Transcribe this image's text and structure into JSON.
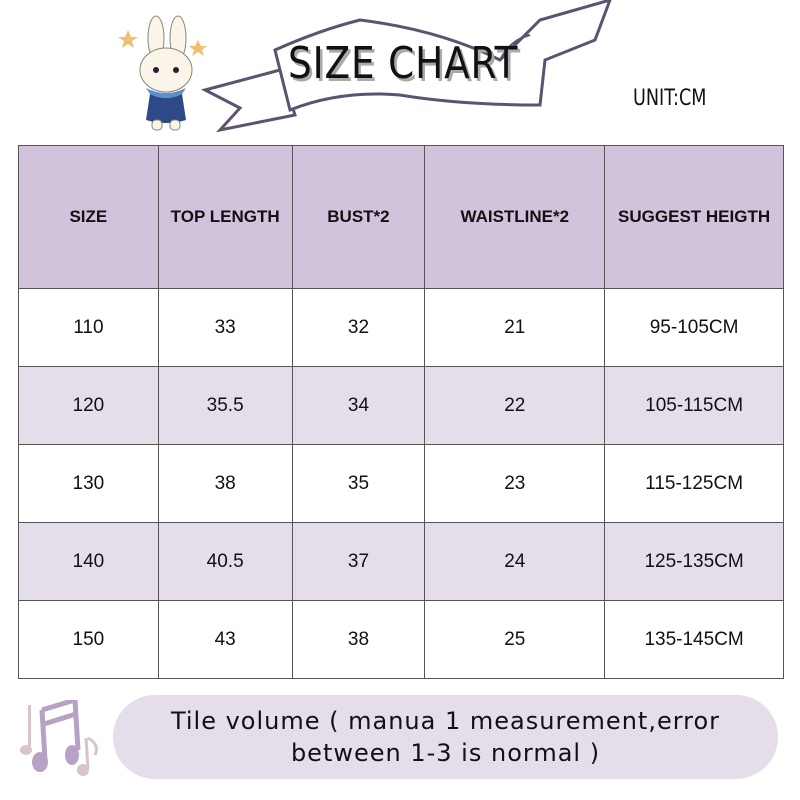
{
  "header": {
    "title": "SIZE CHART",
    "unit": "UNIT:CM"
  },
  "table": {
    "columns": [
      "SIZE",
      "TOP LENGTH",
      "BUST*2",
      "WAISTLINE*2",
      "SUGGEST HEIGTH"
    ],
    "rows": [
      [
        "110",
        "33",
        "32",
        "21",
        "95-105CM"
      ],
      [
        "120",
        "35.5",
        "34",
        "22",
        "105-115CM"
      ],
      [
        "130",
        "38",
        "35",
        "23",
        "115-125CM"
      ],
      [
        "140",
        "40.5",
        "37",
        "24",
        "125-135CM"
      ],
      [
        "150",
        "43",
        "38",
        "25",
        "135-145CM"
      ]
    ]
  },
  "note": {
    "line1": "Tile volume ( manua 1 measurement,error",
    "line2": "between 1-3 is normal )"
  },
  "colors": {
    "header_bg": "#d1c3dc",
    "alt_row_bg": "#e5dde9",
    "ribbon": "#5e5270"
  }
}
